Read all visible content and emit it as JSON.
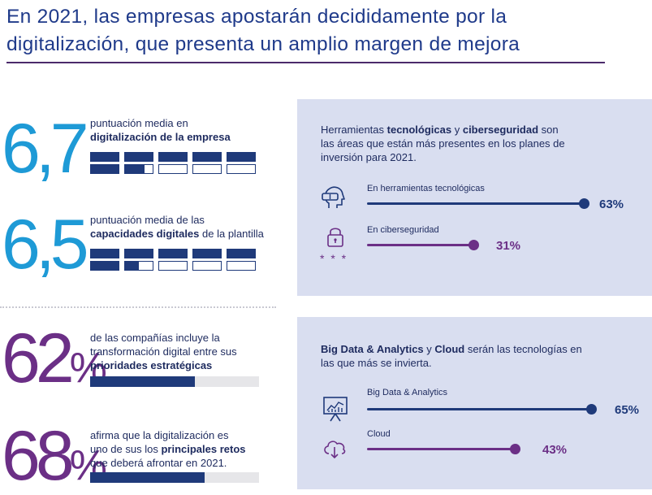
{
  "title": {
    "line1": "En 2021, las empresas apostarán decididamente por la",
    "line2": "digitalización, que presenta un amplio margen de mejora"
  },
  "stats": [
    {
      "value": "6,7",
      "grid_score": 6.7,
      "label_pre": "puntuación media en",
      "label_bold": "digitalización de la empresa",
      "label_post": ""
    },
    {
      "value": "6,5",
      "grid_score": 6.5,
      "label_pre": "puntuación media de las",
      "label_bold": "capacidades digitales",
      "label_post": " de la plantilla"
    }
  ],
  "percents": [
    {
      "value": "62",
      "sign": "%",
      "fill_pct": 62,
      "line1": "de las compañías incluye la",
      "line2": "transformación digital entre sus",
      "line3_bold": "prioridades estratégicas",
      "line3_post": ""
    },
    {
      "value": "68",
      "sign": "%",
      "fill_pct": 68,
      "line1": "afirma que la digitalización es",
      "line2_pre": "uno de sus los ",
      "line2_bold": "principales retos",
      "line3": "que deberá afrontar en 2021."
    }
  ],
  "panel1": {
    "intro_pre": "Herramientas ",
    "intro_bold1": "tecnológicas",
    "intro_mid": " y ",
    "intro_bold2": "ciberseguridad",
    "intro_post": " son",
    "intro_line2": "las áreas que están más presentes en los planes de",
    "intro_line3": "inversión para 2021.",
    "items": [
      {
        "label": "En herramientas tecnológicas",
        "value": 63,
        "value_label": "63%",
        "color": "#1f3a7a",
        "icon": "vr-headset-icon"
      },
      {
        "label": "En ciberseguridad",
        "value": 31,
        "value_label": "31%",
        "color": "#6b2f86",
        "icon": "lock-icon"
      }
    ],
    "stars": "* * *"
  },
  "panel2": {
    "intro_bold1": "Big Data & Analytics",
    "intro_mid": " y ",
    "intro_bold2": "Cloud",
    "intro_post": " serán las tecnologías en",
    "intro_line2": "las que más se invierta.",
    "items": [
      {
        "label": "Big Data & Analytics",
        "value": 65,
        "value_label": "65%",
        "color": "#1f3a7a",
        "icon": "analytics-chart-icon"
      },
      {
        "label": "Cloud",
        "value": 43,
        "value_label": "43%",
        "color": "#6b2f86",
        "icon": "cloud-download-icon"
      }
    ]
  },
  "colors": {
    "navy": "#1f3a7a",
    "purple": "#6b2f86",
    "cyan": "#1e9ad6",
    "panel": "#d9def0"
  }
}
